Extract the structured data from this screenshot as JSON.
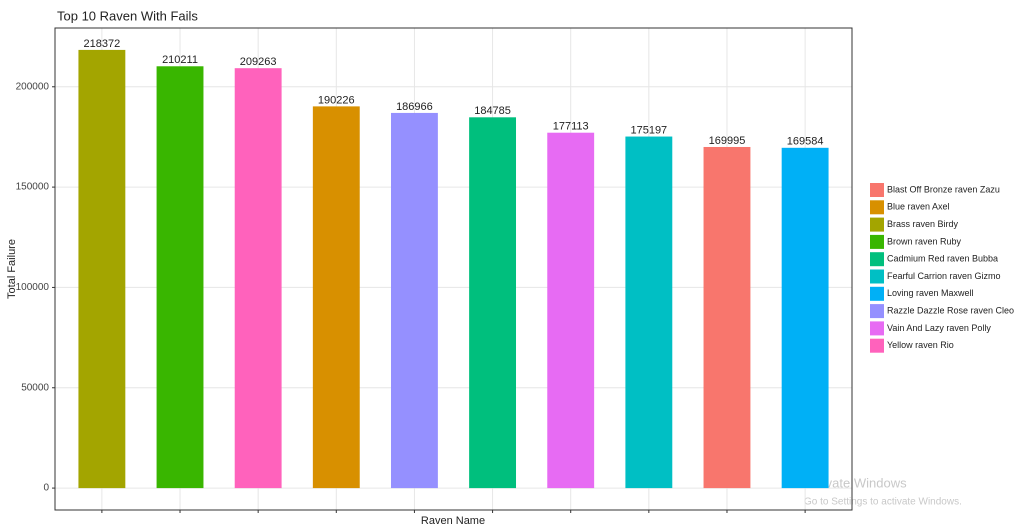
{
  "chart_data": {
    "type": "bar",
    "title": "Top 10 Raven With Fails",
    "x_label": "Raven Name",
    "y_label": "Total Failure",
    "categories": [
      "Brass raven Birdy",
      "Brown raven Ruby",
      "Yellow raven Rio",
      "Blue raven Axel",
      "Razzle Dazzle Rose raven Cleo",
      "Cadmium Red raven Bubba",
      "Vain And Lazy raven Polly",
      "Fearful Carrion raven Gizmo",
      "Blast Off Bronze raven Zazu",
      "Loving  raven Maxwell"
    ],
    "values": [
      218372,
      210211,
      209263,
      190226,
      186966,
      184785,
      177113,
      175197,
      169995,
      169584
    ],
    "colors": [
      "#A3A500",
      "#39B600",
      "#FF62BC",
      "#D89000",
      "#9590FF",
      "#00BF7D",
      "#E76BF3",
      "#00BFC4",
      "#F8766D",
      "#00B0F6"
    ],
    "ylim": [
      -10919,
      229291
    ],
    "yticks": [
      0,
      50000,
      100000,
      150000,
      200000
    ],
    "grid": true,
    "legend": "right"
  },
  "watermark": {
    "title": "Activate Windows",
    "subtitle": "Go to Settings to activate Windows."
  }
}
